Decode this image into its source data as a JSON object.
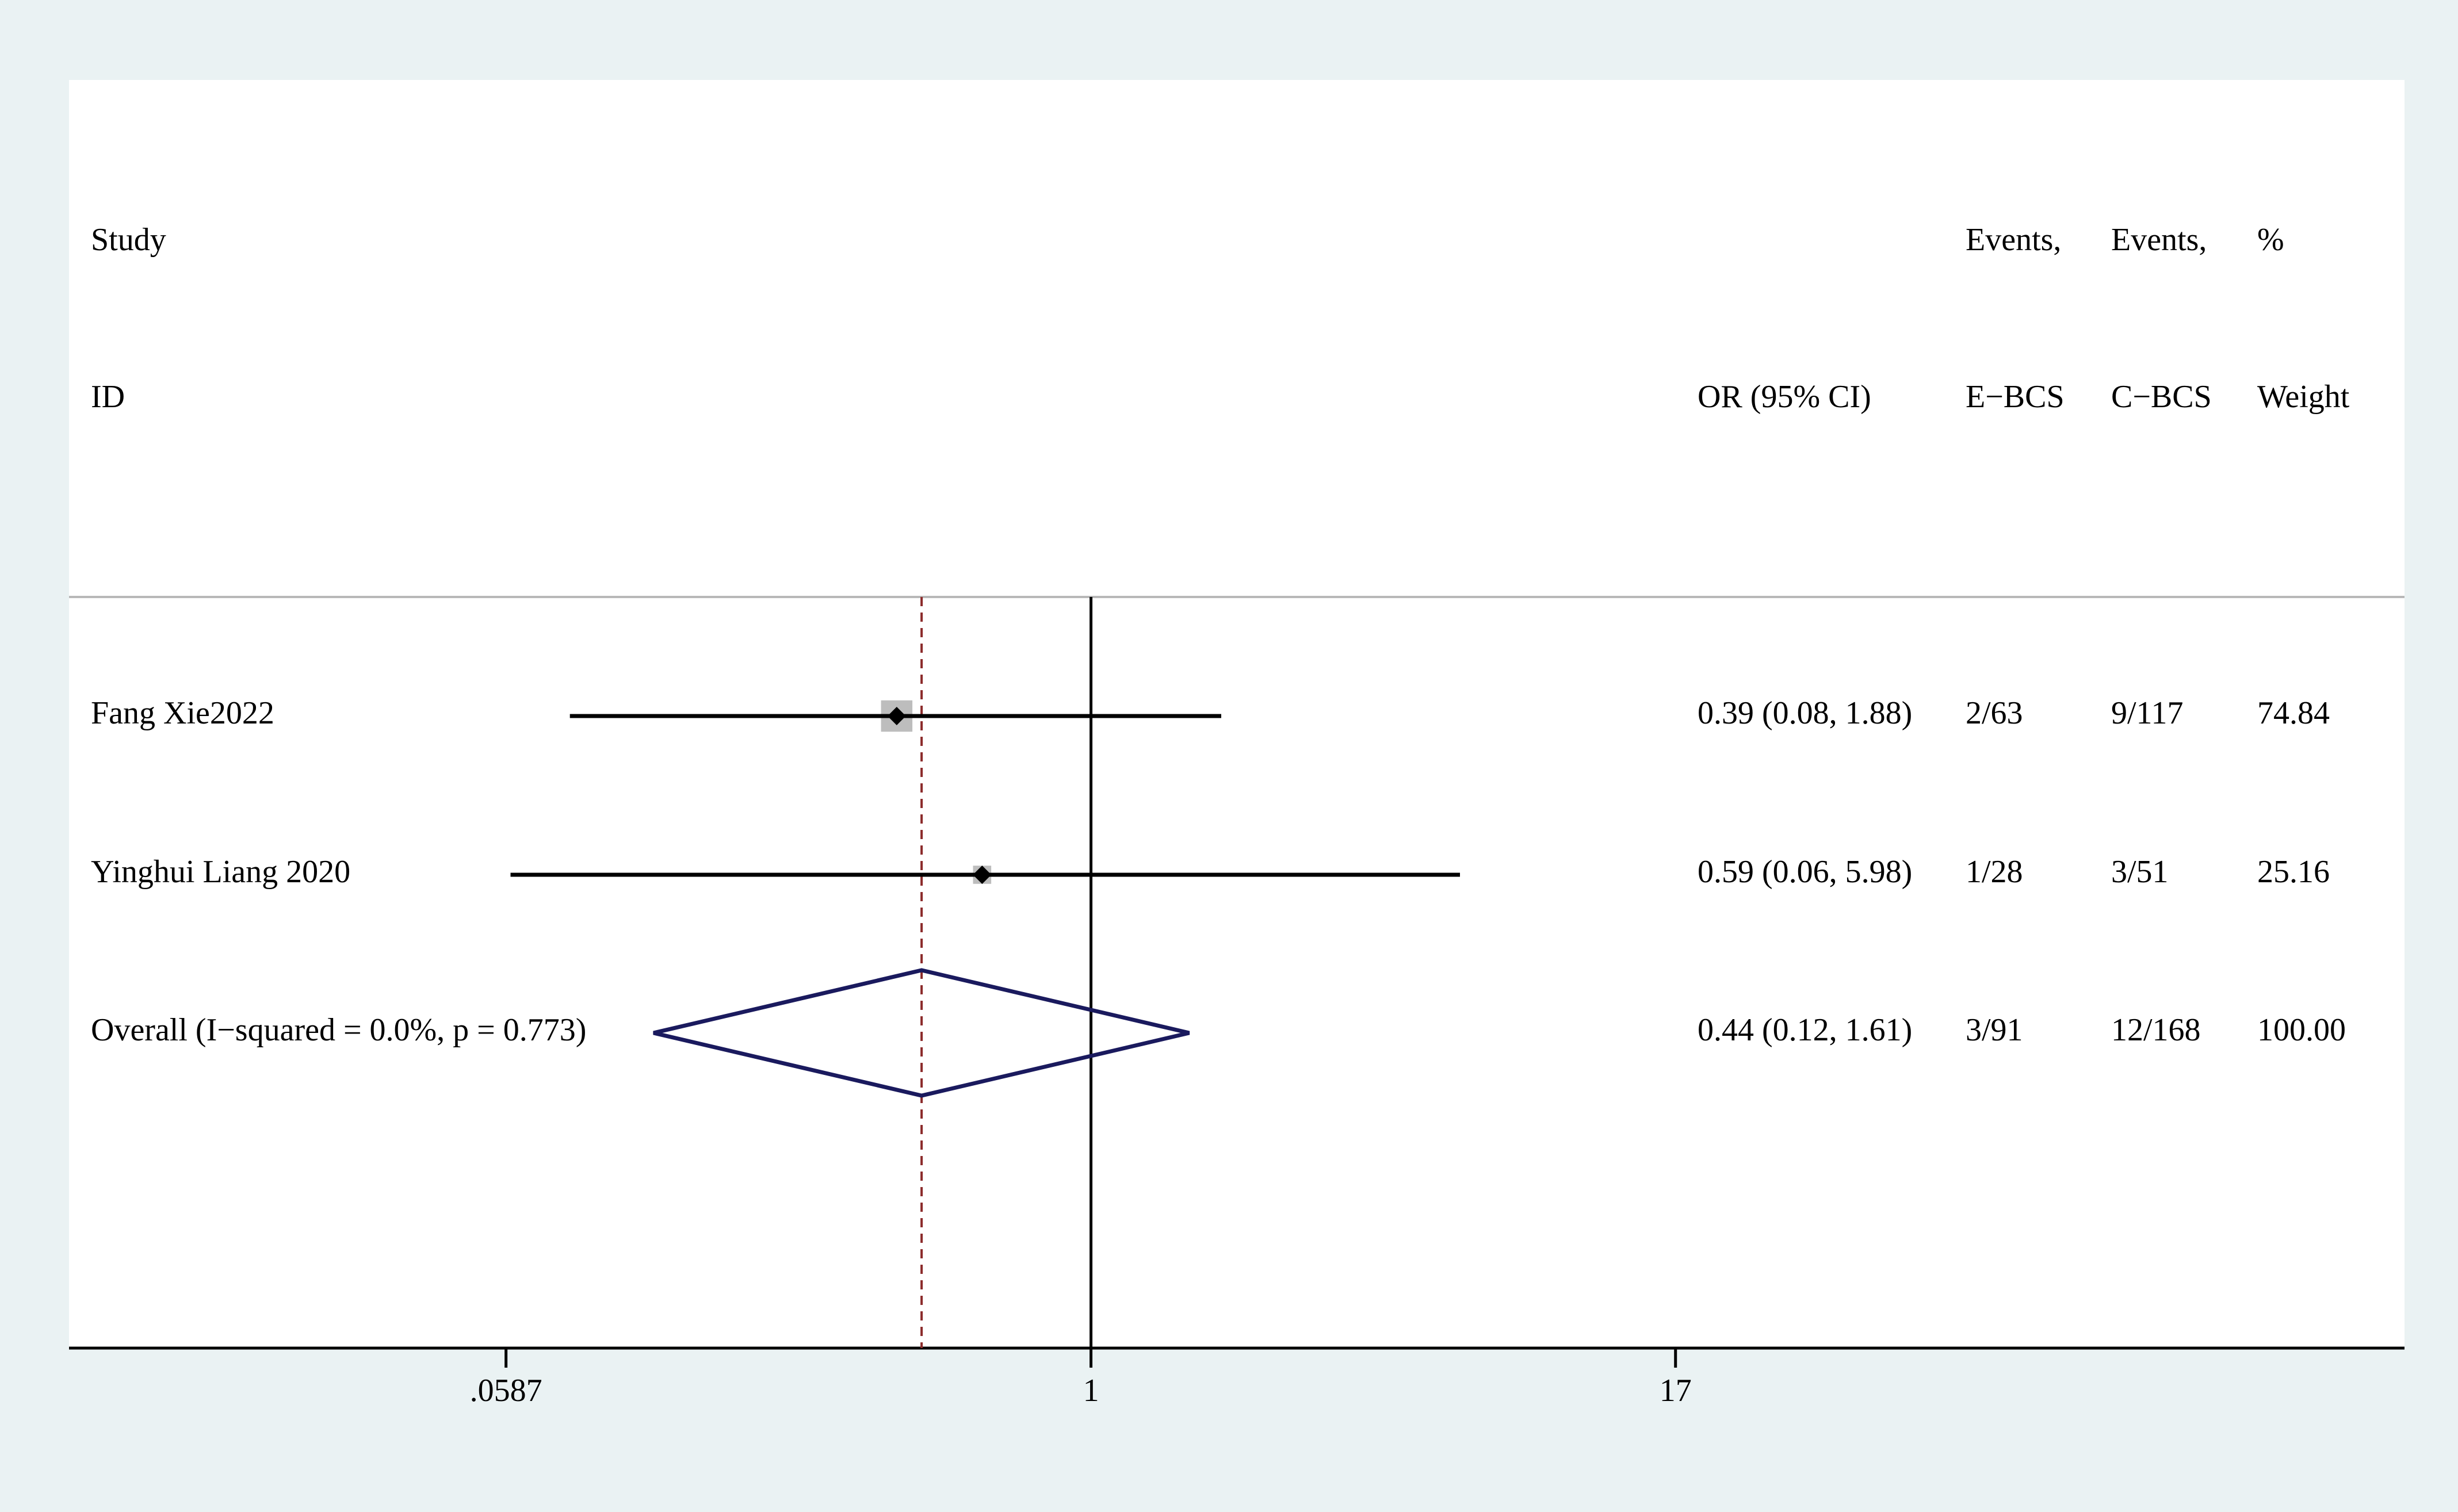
{
  "chart_data": {
    "type": "forest",
    "headers": {
      "study": [
        "Study",
        "ID"
      ],
      "estimate": [
        "",
        "OR (95% CI)"
      ],
      "events_e": [
        "Events,",
        "E−BCS"
      ],
      "events_c": [
        "Events,",
        "C−BCS"
      ],
      "weight": [
        "%",
        "Weight"
      ]
    },
    "categories": [
      "Fang Xie2022",
      "Yinghui Liang 2020",
      "Overall  (I−squared = 0.0%, p = 0.773)"
    ],
    "values": [
      0.39,
      0.59,
      0.44
    ],
    "ci_low": [
      0.08,
      0.06,
      0.12
    ],
    "ci_high": [
      1.88,
      5.98,
      1.61
    ],
    "value_labels": [
      "0.39 (0.08, 1.88)",
      "0.59 (0.06, 5.98)",
      "0.44 (0.12, 1.61)"
    ],
    "events_e": [
      "2/63",
      "1/28",
      "3/91"
    ],
    "events_c": [
      "9/117",
      "3/51",
      "12/168"
    ],
    "weights": [
      74.84,
      25.16,
      100
    ],
    "weight_labels": [
      "74.84",
      "25.16",
      "100.00"
    ],
    "overall_index": 2,
    "null_value": 1,
    "log_x": true,
    "xlim": [
      0.00706,
      582
    ],
    "xticks": [
      {
        "value": 0.0587,
        "label": ".0587"
      },
      1,
      17
    ],
    "box_color": "#bdbdbd",
    "line_color": "#000000",
    "diamond_color": "#1a1a5e",
    "reference_color": "#8b2a2a"
  }
}
